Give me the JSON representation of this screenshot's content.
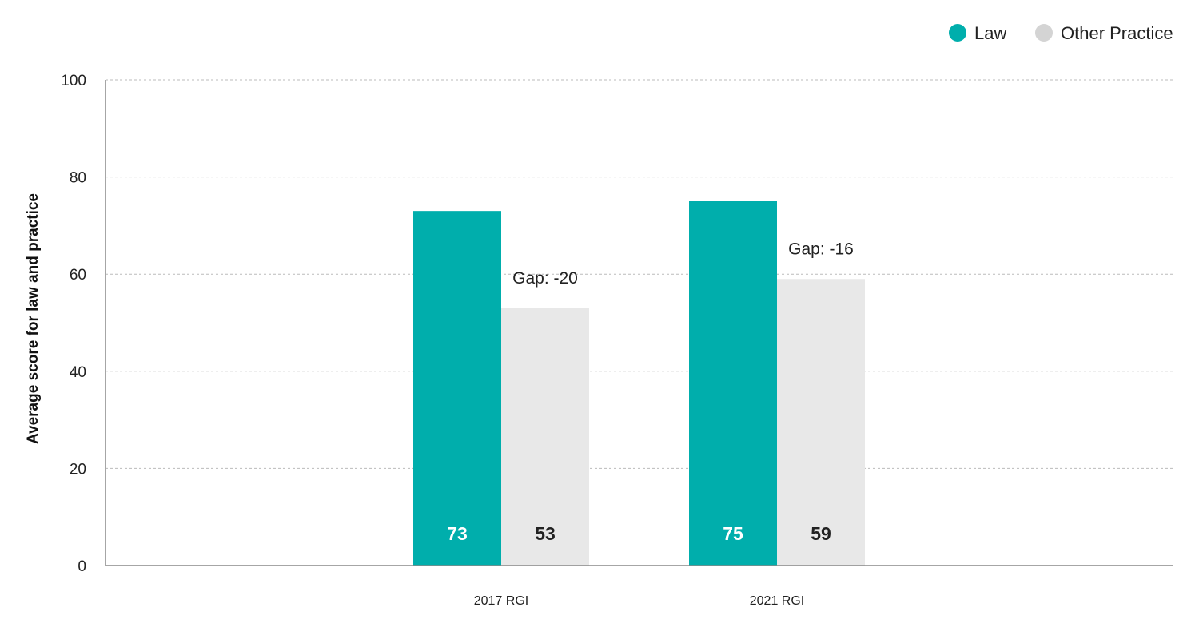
{
  "chart_data": {
    "type": "bar",
    "categories": [
      "2017 RGI",
      "2021 RGI"
    ],
    "series": [
      {
        "name": "Law",
        "values": [
          73,
          75
        ],
        "color": "#00aeac",
        "label_color": "#ffffff"
      },
      {
        "name": "Other Practice",
        "values": [
          53,
          59
        ],
        "color": "#e8e8e8",
        "label_color": "#222222"
      }
    ],
    "annotations": [
      "Gap: -20",
      "Gap: -16"
    ],
    "title": "",
    "xlabel": "",
    "ylabel": "Average score for law and practice",
    "ylim": [
      0,
      100
    ],
    "yticks": [
      0,
      20,
      40,
      60,
      80,
      100
    ],
    "grid": true,
    "legend_position": "top-right",
    "legend_marker_colors": [
      "#00aeac",
      "#d4d4d4"
    ]
  }
}
